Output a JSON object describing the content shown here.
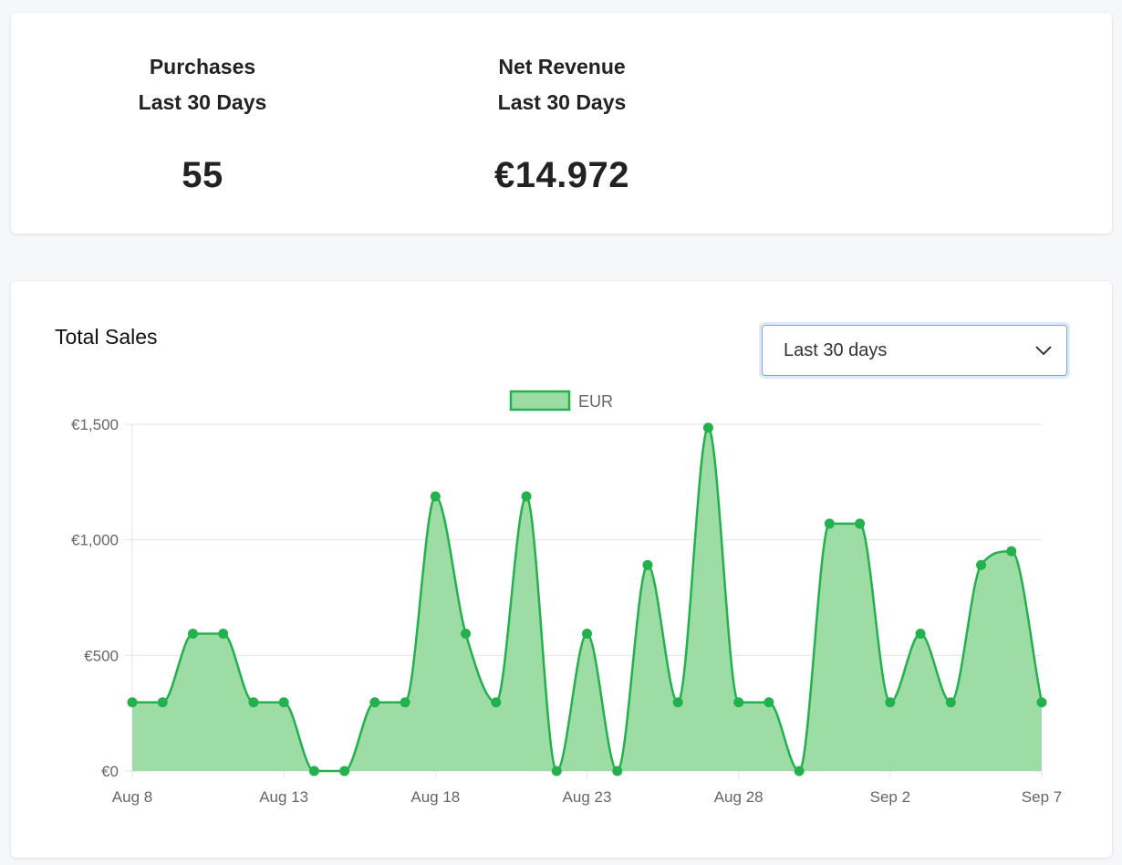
{
  "stats": {
    "purchases": {
      "label_line1": "Purchases",
      "label_line2": "Last 30 Days",
      "value": "55"
    },
    "revenue": {
      "label_line1": "Net Revenue",
      "label_line2": "Last 30 Days",
      "value": "€14.972"
    }
  },
  "chart_card": {
    "title": "Total Sales",
    "range_select": {
      "selected": "Last 30 days"
    }
  },
  "chart_data": {
    "type": "area",
    "title": "Total Sales",
    "legend": {
      "position": "top",
      "entries": [
        "EUR"
      ]
    },
    "ylim": [
      0,
      1500
    ],
    "yticks": [
      0,
      500,
      1000,
      1500
    ],
    "ytick_labels": [
      "€0",
      "€500",
      "€1,000",
      "€1,500"
    ],
    "x": [
      "Aug 8",
      "Aug 9",
      "Aug 10",
      "Aug 11",
      "Aug 12",
      "Aug 13",
      "Aug 14",
      "Aug 15",
      "Aug 16",
      "Aug 17",
      "Aug 18",
      "Aug 19",
      "Aug 20",
      "Aug 21",
      "Aug 22",
      "Aug 23",
      "Aug 24",
      "Aug 25",
      "Aug 26",
      "Aug 27",
      "Aug 28",
      "Aug 29",
      "Aug 30",
      "Aug 31",
      "Sep 1",
      "Sep 2",
      "Sep 3",
      "Sep 4",
      "Sep 5",
      "Sep 6",
      "Sep 7"
    ],
    "xtick_labels": [
      "Aug 8",
      "Aug 13",
      "Aug 18",
      "Aug 23",
      "Aug 28",
      "Sep 2",
      "Sep 7"
    ],
    "grid": true,
    "series": [
      {
        "name": "EUR",
        "values": [
          297,
          297,
          594,
          594,
          297,
          297,
          0,
          0,
          297,
          297,
          1188,
          594,
          297,
          1188,
          0,
          594,
          0,
          891,
          297,
          1485,
          297,
          297,
          0,
          1070,
          1070,
          297,
          594,
          297,
          891,
          951,
          297
        ]
      }
    ],
    "colors": {
      "line": "#22b14c",
      "fill": "#9ddca4",
      "grid": "#e3e3e3",
      "axis_text": "#666666"
    }
  }
}
